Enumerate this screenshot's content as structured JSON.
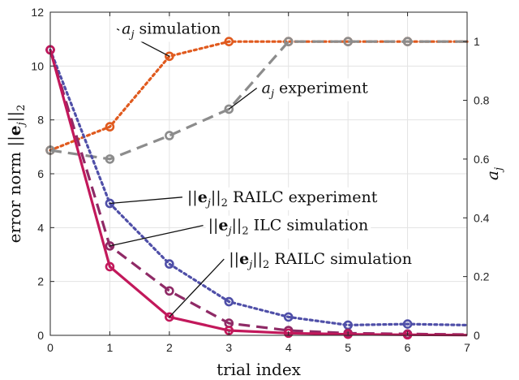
{
  "chart_data": {
    "type": "line",
    "x": [
      0,
      1,
      2,
      3,
      4,
      5,
      6,
      7
    ],
    "xlabel": "trial index",
    "xlim": [
      0,
      7
    ],
    "xticks": [
      "0",
      "1",
      "2",
      "3",
      "4",
      "5",
      "6",
      "7"
    ],
    "ylabel_left": "error norm ||e_j||_2",
    "ylim_left": [
      0,
      12
    ],
    "yticks_left": [
      "0",
      "2",
      "4",
      "6",
      "8",
      "10",
      "12"
    ],
    "ylabel_right": "a_j",
    "ylim_right": [
      0,
      1.1
    ],
    "yticks_right": [
      "0",
      "0.2",
      "0.4",
      "0.6",
      "0.8",
      "1"
    ],
    "grid": true,
    "series": [
      {
        "name": "a_j simulation",
        "axis": "right",
        "style": "dotted",
        "color": "#e05a1e",
        "x": [
          0,
          1,
          2,
          3,
          4,
          5,
          6,
          7
        ],
        "values": [
          0.63,
          0.71,
          0.95,
          1.0,
          1.0,
          1.0,
          1.0,
          1.0
        ],
        "markers": [
          0,
          1,
          2,
          3,
          4,
          5,
          6
        ]
      },
      {
        "name": "a_j experiment",
        "axis": "right",
        "style": "dashed",
        "color": "#8c8c8c",
        "x": [
          0,
          1,
          2,
          3,
          4,
          5,
          6,
          7
        ],
        "values": [
          0.63,
          0.6,
          0.68,
          0.77,
          1.0,
          1.0,
          1.0,
          1.0
        ],
        "markers": [
          0,
          1,
          2,
          3,
          4,
          5,
          6
        ]
      },
      {
        "name": "||e_j||_2 RAILC experiment",
        "axis": "left",
        "style": "dotted",
        "color": "#4f4fa8",
        "x": [
          0,
          1,
          2,
          3,
          4,
          5,
          6,
          7
        ],
        "values": [
          10.6,
          4.9,
          2.65,
          1.25,
          0.68,
          0.38,
          0.42,
          0.38
        ],
        "markers": [
          0,
          1,
          2,
          3,
          4,
          5,
          6
        ]
      },
      {
        "name": "||e_j||_2 ILC simulation",
        "axis": "left",
        "style": "dashed",
        "color": "#8f2a66",
        "x": [
          0,
          1,
          2,
          3,
          4,
          5,
          6,
          7
        ],
        "values": [
          10.6,
          3.32,
          1.65,
          0.45,
          0.18,
          0.08,
          0.05,
          0.03
        ],
        "markers": [
          0,
          1,
          2,
          3,
          4,
          5,
          6
        ]
      },
      {
        "name": "||e_j||_2 RAILC simulation",
        "axis": "left",
        "style": "solid",
        "color": "#c2185b",
        "x": [
          0,
          1,
          2,
          3,
          4,
          5,
          6,
          7
        ],
        "values": [
          10.6,
          2.55,
          0.68,
          0.18,
          0.08,
          0.04,
          0.02,
          0.01
        ],
        "markers": [
          0,
          1,
          2,
          3,
          4,
          5,
          6
        ]
      }
    ],
    "annotations": [
      {
        "series": 0,
        "anchor_x": 2,
        "text_x": 1.2,
        "text_y_left": 11.2
      },
      {
        "series": 1,
        "anchor_x": 3,
        "text_x": 3.55,
        "text_y_left": 9.0
      },
      {
        "series": 2,
        "anchor_x": 1,
        "text_x": 2.3,
        "text_y_left": 4.95
      },
      {
        "series": 3,
        "anchor_x": 1,
        "text_x": 2.65,
        "text_y_left": 3.9
      },
      {
        "series": 4,
        "anchor_x": 2,
        "text_x": 3.0,
        "text_y_left": 2.65
      }
    ]
  }
}
